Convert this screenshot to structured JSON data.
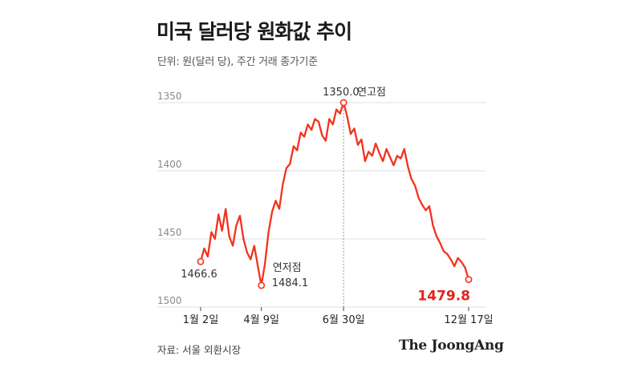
{
  "title": "미국 달러당 원화값 추이",
  "subtitle": "단위: 원(달러 당), 주간 거래 종가기준",
  "source": "자료: 서울 외환시장",
  "brand": "The JoongAng",
  "colors": {
    "line": "#f2331d",
    "accent_text": "#e3231a",
    "grid": "#e2e2e2",
    "text": "#333333"
  },
  "chart_data": {
    "type": "line",
    "title": "미국 달러당 원화값 추이",
    "y_axis": {
      "reversed": true,
      "range": [
        1500,
        1340
      ],
      "ticks": [
        1350,
        1400,
        1450,
        1500
      ],
      "tick_labels": [
        "1350",
        "1400",
        "1450",
        "1500"
      ]
    },
    "x_ticks": [
      "1월 2일",
      "4월 9일",
      "6월 30일",
      "12월 17일"
    ],
    "series": [
      {
        "values": [
          1466.6,
          1457,
          1463,
          1445,
          1450,
          1432,
          1444,
          1428,
          1448,
          1455,
          1440,
          1433,
          1450,
          1460,
          1465,
          1455,
          1470,
          1484.1,
          1468,
          1445,
          1430,
          1422,
          1428,
          1410,
          1398,
          1395,
          1382,
          1385,
          1372,
          1375,
          1366,
          1370,
          1362,
          1364,
          1374,
          1378,
          1362,
          1366,
          1355,
          1358,
          1350.0,
          1360,
          1373,
          1369,
          1381,
          1377,
          1393,
          1386,
          1389,
          1380,
          1387,
          1393,
          1384,
          1390,
          1396,
          1389,
          1391,
          1384,
          1397,
          1406,
          1411,
          1420,
          1425,
          1429,
          1426,
          1440,
          1448,
          1453,
          1459,
          1461,
          1465,
          1470,
          1464,
          1467,
          1471,
          1479.8
        ]
      }
    ],
    "annotations": [
      {
        "label": "1466.6",
        "value": 1466.6
      },
      {
        "label": "1484.1",
        "value": 1484.1,
        "note": "연저점"
      },
      {
        "label": "1350.0",
        "value": 1350.0,
        "note": "연고점"
      },
      {
        "label": "1479.8",
        "value": 1479.8
      }
    ]
  }
}
